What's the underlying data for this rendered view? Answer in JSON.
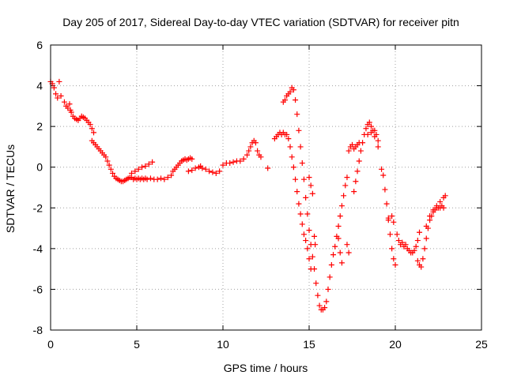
{
  "chart_data": {
    "type": "scatter",
    "title": "Day 205 of 2017, Sidereal Day-to-day VTEC variation (SDTVAR) for receiver pitn",
    "xlabel": "GPS time / hours",
    "ylabel": "SDTVAR / TECUs",
    "xlim": [
      0,
      25
    ],
    "ylim": [
      -8,
      6
    ],
    "xticks": [
      0,
      5,
      10,
      15,
      20,
      25
    ],
    "yticks": [
      -8,
      -6,
      -4,
      -2,
      0,
      2,
      4,
      6
    ],
    "grid": true,
    "marker": "+",
    "color": "#ff0000",
    "series": [
      {
        "points": [
          [
            0.0,
            4.2
          ],
          [
            0.1,
            4.1
          ],
          [
            0.2,
            3.9
          ],
          [
            0.3,
            3.6
          ],
          [
            0.4,
            3.4
          ],
          [
            0.5,
            4.2
          ],
          [
            0.6,
            3.5
          ],
          [
            0.8,
            3.2
          ],
          [
            0.9,
            3.0
          ],
          [
            1.0,
            2.9
          ],
          [
            1.1,
            3.1
          ],
          [
            1.15,
            2.8
          ],
          [
            1.2,
            2.7
          ],
          [
            1.3,
            2.5
          ],
          [
            1.4,
            2.4
          ],
          [
            1.5,
            2.35
          ],
          [
            1.6,
            2.3
          ],
          [
            1.7,
            2.4
          ],
          [
            1.8,
            2.5
          ],
          [
            1.9,
            2.45
          ],
          [
            2.0,
            2.4
          ],
          [
            2.1,
            2.3
          ],
          [
            2.2,
            2.2
          ],
          [
            2.3,
            2.1
          ],
          [
            2.4,
            1.9
          ],
          [
            2.5,
            1.7
          ],
          [
            2.4,
            1.3
          ],
          [
            2.5,
            1.2
          ],
          [
            2.6,
            1.1
          ],
          [
            2.7,
            1.0
          ],
          [
            2.8,
            0.9
          ],
          [
            2.9,
            0.8
          ],
          [
            3.0,
            0.7
          ],
          [
            3.1,
            0.6
          ],
          [
            3.2,
            0.5
          ],
          [
            3.3,
            0.3
          ],
          [
            3.4,
            0.1
          ],
          [
            3.5,
            -0.1
          ],
          [
            3.6,
            -0.3
          ],
          [
            3.7,
            -0.45
          ],
          [
            3.8,
            -0.55
          ],
          [
            3.9,
            -0.6
          ],
          [
            4.0,
            -0.65
          ],
          [
            4.1,
            -0.7
          ],
          [
            4.2,
            -0.7
          ],
          [
            4.3,
            -0.65
          ],
          [
            4.4,
            -0.6
          ],
          [
            4.5,
            -0.55
          ],
          [
            4.6,
            -0.5
          ],
          [
            4.7,
            -0.5
          ],
          [
            4.8,
            -0.6
          ],
          [
            4.9,
            -0.55
          ],
          [
            5.0,
            -0.6
          ],
          [
            5.1,
            -0.55
          ],
          [
            5.2,
            -0.6
          ],
          [
            5.3,
            -0.55
          ],
          [
            5.4,
            -0.6
          ],
          [
            5.5,
            -0.55
          ],
          [
            4.7,
            -0.3
          ],
          [
            4.9,
            -0.2
          ],
          [
            5.1,
            -0.1
          ],
          [
            5.3,
            0.0
          ],
          [
            5.5,
            0.05
          ],
          [
            5.7,
            0.15
          ],
          [
            5.9,
            0.25
          ],
          [
            5.6,
            -0.6
          ],
          [
            5.8,
            -0.55
          ],
          [
            6.0,
            -0.6
          ],
          [
            6.2,
            -0.6
          ],
          [
            6.4,
            -0.55
          ],
          [
            6.6,
            -0.6
          ],
          [
            6.8,
            -0.5
          ],
          [
            7.0,
            -0.4
          ],
          [
            7.1,
            -0.2
          ],
          [
            7.2,
            -0.1
          ],
          [
            7.3,
            0.0
          ],
          [
            7.4,
            0.1
          ],
          [
            7.5,
            0.2
          ],
          [
            7.6,
            0.3
          ],
          [
            7.7,
            0.35
          ],
          [
            7.8,
            0.4
          ],
          [
            7.9,
            0.35
          ],
          [
            8.0,
            0.4
          ],
          [
            8.1,
            0.45
          ],
          [
            8.2,
            0.4
          ],
          [
            8.0,
            -0.2
          ],
          [
            8.2,
            -0.15
          ],
          [
            8.4,
            -0.05
          ],
          [
            8.6,
            0.0
          ],
          [
            8.7,
            0.05
          ],
          [
            8.8,
            -0.05
          ],
          [
            9.0,
            -0.1
          ],
          [
            9.2,
            -0.2
          ],
          [
            9.4,
            -0.25
          ],
          [
            9.6,
            -0.3
          ],
          [
            9.8,
            -0.2
          ],
          [
            10.0,
            0.1
          ],
          [
            10.2,
            0.2
          ],
          [
            10.4,
            0.2
          ],
          [
            10.6,
            0.25
          ],
          [
            10.8,
            0.3
          ],
          [
            11.0,
            0.3
          ],
          [
            11.2,
            0.4
          ],
          [
            11.4,
            0.6
          ],
          [
            11.5,
            0.8
          ],
          [
            11.6,
            1.0
          ],
          [
            11.7,
            1.2
          ],
          [
            11.8,
            1.3
          ],
          [
            11.9,
            1.2
          ],
          [
            12.0,
            0.8
          ],
          [
            12.1,
            0.6
          ],
          [
            12.2,
            0.5
          ],
          [
            12.6,
            -0.05
          ],
          [
            13.0,
            1.4
          ],
          [
            13.1,
            1.5
          ],
          [
            13.2,
            1.6
          ],
          [
            13.3,
            1.7
          ],
          [
            13.4,
            1.6
          ],
          [
            13.5,
            1.7
          ],
          [
            13.6,
            1.6
          ],
          [
            13.7,
            1.6
          ],
          [
            13.5,
            3.2
          ],
          [
            13.6,
            3.3
          ],
          [
            13.7,
            3.5
          ],
          [
            13.8,
            3.6
          ],
          [
            13.9,
            3.7
          ],
          [
            14.0,
            3.9
          ],
          [
            14.1,
            3.8
          ],
          [
            14.2,
            3.3
          ],
          [
            14.3,
            2.6
          ],
          [
            14.4,
            1.8
          ],
          [
            14.5,
            1.0
          ],
          [
            14.6,
            0.2
          ],
          [
            14.7,
            -0.6
          ],
          [
            14.8,
            -1.5
          ],
          [
            14.9,
            -2.3
          ],
          [
            15.0,
            -3.1
          ],
          [
            15.1,
            -3.8
          ],
          [
            15.2,
            -4.4
          ],
          [
            15.3,
            -5.0
          ],
          [
            15.4,
            -5.7
          ],
          [
            15.5,
            -6.3
          ],
          [
            15.6,
            -6.8
          ],
          [
            15.7,
            -7.0
          ],
          [
            15.8,
            -7.0
          ],
          [
            15.9,
            -6.9
          ],
          [
            16.0,
            -6.6
          ],
          [
            16.1,
            -6.0
          ],
          [
            16.2,
            -5.4
          ],
          [
            16.3,
            -4.8
          ],
          [
            16.4,
            -4.3
          ],
          [
            16.5,
            -3.9
          ],
          [
            16.6,
            -3.4
          ],
          [
            16.7,
            -2.9
          ],
          [
            16.8,
            -2.4
          ],
          [
            16.9,
            -1.9
          ],
          [
            17.0,
            -1.4
          ],
          [
            17.1,
            -0.9
          ],
          [
            17.2,
            -0.5
          ],
          [
            13.8,
            1.4
          ],
          [
            13.9,
            1.0
          ],
          [
            14.0,
            0.5
          ],
          [
            14.1,
            0.0
          ],
          [
            14.2,
            -0.6
          ],
          [
            14.3,
            -1.2
          ],
          [
            14.4,
            -1.8
          ],
          [
            14.5,
            -2.3
          ],
          [
            14.6,
            -2.8
          ],
          [
            14.7,
            -3.3
          ],
          [
            14.8,
            -3.6
          ],
          [
            14.9,
            -4.0
          ],
          [
            15.0,
            -4.5
          ],
          [
            15.1,
            -5.0
          ],
          [
            15.0,
            -0.5
          ],
          [
            15.1,
            -0.9
          ],
          [
            15.2,
            -1.3
          ],
          [
            15.3,
            -3.4
          ],
          [
            15.35,
            -3.8
          ],
          [
            16.7,
            -3.5
          ],
          [
            16.8,
            -4.2
          ],
          [
            16.9,
            -4.7
          ],
          [
            17.2,
            -3.8
          ],
          [
            17.3,
            -4.2
          ],
          [
            17.3,
            0.8
          ],
          [
            17.4,
            1.0
          ],
          [
            17.5,
            1.1
          ],
          [
            17.6,
            0.9
          ],
          [
            17.7,
            1.0
          ],
          [
            17.8,
            1.1
          ],
          [
            17.9,
            1.2
          ],
          [
            17.6,
            -1.2
          ],
          [
            17.7,
            -0.7
          ],
          [
            17.8,
            -0.2
          ],
          [
            17.9,
            0.3
          ],
          [
            18.0,
            0.8
          ],
          [
            18.1,
            1.2
          ],
          [
            18.2,
            1.6
          ],
          [
            18.3,
            1.9
          ],
          [
            18.4,
            2.1
          ],
          [
            18.5,
            2.2
          ],
          [
            18.6,
            2.0
          ],
          [
            18.7,
            1.8
          ],
          [
            18.8,
            1.5
          ],
          [
            18.4,
            1.6
          ],
          [
            18.6,
            1.7
          ],
          [
            18.8,
            1.8
          ],
          [
            18.9,
            1.6
          ],
          [
            19.0,
            1.3
          ],
          [
            19.0,
            1.0
          ],
          [
            19.2,
            -0.1
          ],
          [
            19.3,
            -0.4
          ],
          [
            19.4,
            -1.1
          ],
          [
            19.5,
            -1.8
          ],
          [
            19.6,
            -2.6
          ],
          [
            19.7,
            -3.3
          ],
          [
            19.8,
            -4.0
          ],
          [
            19.9,
            -4.5
          ],
          [
            20.0,
            -4.8
          ],
          [
            19.6,
            -2.5
          ],
          [
            19.8,
            -2.4
          ],
          [
            19.9,
            -2.7
          ],
          [
            20.1,
            -3.3
          ],
          [
            20.2,
            -3.6
          ],
          [
            20.3,
            -3.8
          ],
          [
            20.4,
            -3.7
          ],
          [
            20.5,
            -3.9
          ],
          [
            20.6,
            -3.8
          ],
          [
            20.7,
            -4.0
          ],
          [
            20.8,
            -4.1
          ],
          [
            20.9,
            -4.2
          ],
          [
            21.0,
            -4.2
          ],
          [
            21.1,
            -4.1
          ],
          [
            21.2,
            -3.9
          ],
          [
            21.3,
            -3.6
          ],
          [
            21.4,
            -3.2
          ],
          [
            21.3,
            -4.6
          ],
          [
            21.4,
            -4.8
          ],
          [
            21.5,
            -4.9
          ],
          [
            21.6,
            -4.5
          ],
          [
            21.7,
            -4.0
          ],
          [
            21.8,
            -3.5
          ],
          [
            21.9,
            -3.0
          ],
          [
            22.0,
            -2.6
          ],
          [
            22.1,
            -2.4
          ],
          [
            22.2,
            -2.2
          ],
          [
            22.3,
            -2.1
          ],
          [
            22.4,
            -2.0
          ],
          [
            22.5,
            -2.0
          ],
          [
            22.6,
            -2.0
          ],
          [
            22.7,
            -1.9
          ],
          [
            22.8,
            -2.0
          ],
          [
            21.8,
            -2.9
          ],
          [
            22.0,
            -2.4
          ],
          [
            22.2,
            -2.1
          ],
          [
            22.4,
            -1.9
          ],
          [
            22.6,
            -1.7
          ],
          [
            22.8,
            -1.5
          ],
          [
            22.9,
            -1.4
          ]
        ]
      }
    ]
  }
}
